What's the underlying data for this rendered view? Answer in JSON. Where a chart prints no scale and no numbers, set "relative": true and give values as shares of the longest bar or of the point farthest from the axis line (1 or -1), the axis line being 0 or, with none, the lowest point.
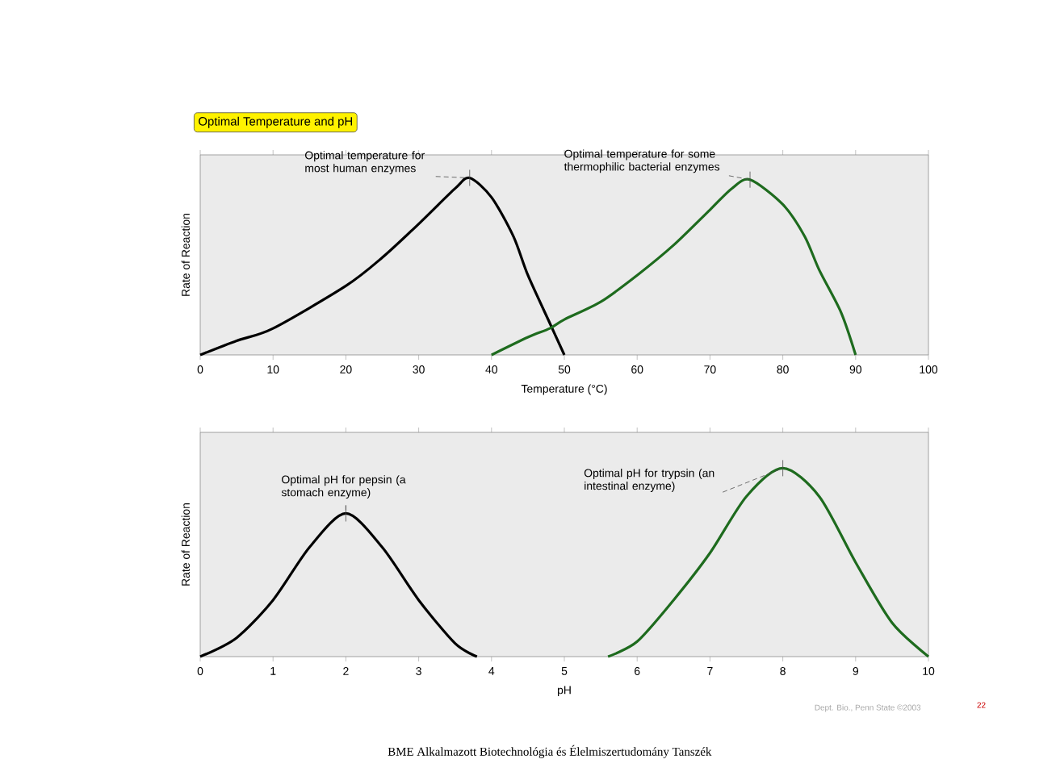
{
  "chart_data": [
    {
      "type": "line",
      "title": "Optimal Temperature and pH",
      "xlabel": "Temperature (°C)",
      "ylabel": "Rate of Reaction",
      "relative": true,
      "tick_labels": "x",
      "xlim": [
        0,
        100
      ],
      "xticks": [
        0,
        10,
        20,
        30,
        40,
        50,
        60,
        70,
        80,
        90,
        100
      ],
      "series": [
        {
          "color": "#000000",
          "x": [
            0,
            5,
            10,
            20,
            25,
            30,
            35,
            37,
            40,
            43,
            45,
            48,
            50
          ],
          "values": [
            0,
            0.08,
            0.15,
            0.39,
            0.55,
            0.74,
            0.94,
            1.0,
            0.89,
            0.67,
            0.45,
            0.18,
            0
          ]
        },
        {
          "color": "#1e6b1e",
          "x": [
            40,
            45,
            48,
            50,
            55,
            60,
            65,
            70,
            73,
            75.5,
            80,
            83,
            85,
            88,
            90
          ],
          "values": [
            0,
            0.1,
            0.15,
            0.2,
            0.3,
            0.45,
            0.62,
            0.82,
            0.94,
            0.99,
            0.85,
            0.67,
            0.48,
            0.24,
            0
          ]
        }
      ],
      "annotations": [
        {
          "text": "Optimal temperature for most human enzymes",
          "x": 37,
          "y": 1.0
        },
        {
          "text": "Optimal temperature for some thermophilic bacterial enzymes",
          "x": 75.5,
          "y": 0.99
        }
      ]
    },
    {
      "type": "line",
      "xlabel": "pH",
      "ylabel": "Rate of Reaction",
      "relative": true,
      "tick_labels": "x",
      "xlim": [
        0,
        10
      ],
      "xticks": [
        0,
        1,
        2,
        3,
        4,
        5,
        6,
        7,
        8,
        9,
        10
      ],
      "series": [
        {
          "color": "#000000",
          "x": [
            0,
            0.5,
            1,
            1.5,
            2,
            2.5,
            3,
            3.5,
            3.8
          ],
          "values": [
            0,
            0.1,
            0.3,
            0.58,
            0.76,
            0.58,
            0.3,
            0.07,
            0
          ]
        },
        {
          "color": "#1e6b1e",
          "x": [
            5.6,
            6,
            6.5,
            7,
            7.5,
            8,
            8.5,
            9,
            9.5,
            10
          ],
          "values": [
            0,
            0.08,
            0.3,
            0.55,
            0.85,
            1.0,
            0.85,
            0.5,
            0.18,
            0
          ]
        }
      ],
      "annotations": [
        {
          "text": "Optimal pH for pepsin (a stomach enzyme)",
          "x": 2,
          "y": 0.76
        },
        {
          "text": "Optimal pH for trypsin (an intestinal enzyme)",
          "x": 8,
          "y": 1.0
        },
        "Dept. Bio., Penn State ©2003",
        "22",
        "BME Alkalmazott Biotechnológia és Élelmiszertudomány Tanszék"
      ]
    }
  ]
}
